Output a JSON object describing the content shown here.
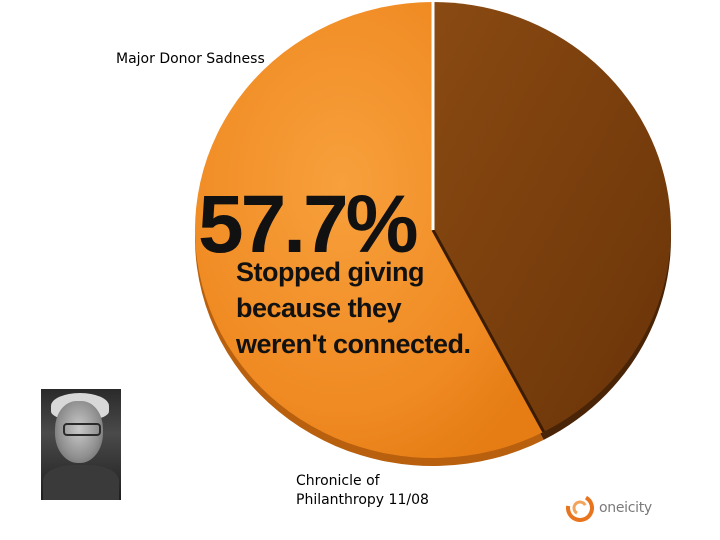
{
  "pie_title": "Major Donor Sadness",
  "headline": {
    "stat": "57.7%",
    "lines": [
      "Stopped giving",
      "because they",
      "weren't connected."
    ]
  },
  "source": {
    "line1": "Chronicle of",
    "line2": "Philanthropy 11/08"
  },
  "logo": {
    "text": "oneicity",
    "color": "#e8751e",
    "icon": "swirl-logo-icon"
  },
  "portrait": {
    "icon": "elderly-woman-photo"
  },
  "chart_data": {
    "type": "pie",
    "title": "Major Donor Sadness",
    "slices": [
      {
        "value": 57.7,
        "color": "#f08a22"
      },
      {
        "value": 42.3,
        "color": "#7a3d0c"
      }
    ],
    "legend": "none",
    "annotations": [
      "57.7%",
      "Stopped giving because they weren't connected."
    ]
  }
}
